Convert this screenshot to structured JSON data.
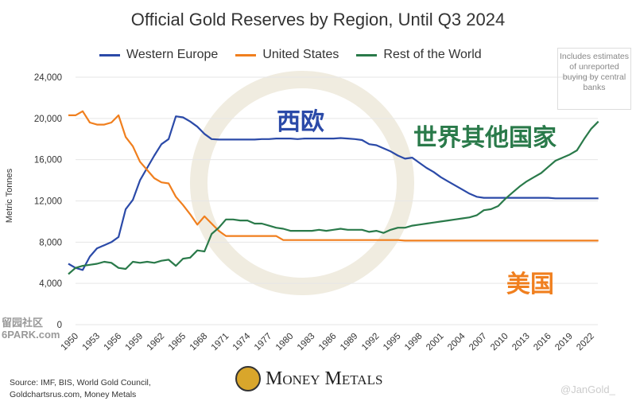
{
  "chart_data": {
    "type": "line",
    "title": "Official Gold Reserves by Region, Until Q3 2024",
    "ylabel": "Metric Tonnes",
    "xlabel": "",
    "ylim": [
      0,
      24000
    ],
    "yticks": [
      0,
      4000,
      8000,
      12000,
      16000,
      20000,
      24000
    ],
    "ytick_labels": [
      "0",
      "4,000",
      "8,000",
      "12,000",
      "16,000",
      "20,000",
      "24,000"
    ],
    "xtick_labels": [
      "1950",
      "1953",
      "1956",
      "1959",
      "1962",
      "1965",
      "1968",
      "1971",
      "1974",
      "1977",
      "1980",
      "1983",
      "1986",
      "1989",
      "1992",
      "1995",
      "1998",
      "2001",
      "2004",
      "2007",
      "2010",
      "2013",
      "2016",
      "2019",
      "2022"
    ],
    "grid": true,
    "legend_placement": "top",
    "x_start": 1950,
    "x_end": 2024,
    "series": [
      {
        "name": "Western Europe",
        "color": "#2b4aa8",
        "values": [
          5900,
          5500,
          5300,
          6600,
          7400,
          7700,
          8000,
          8500,
          11200,
          12100,
          14000,
          15200,
          16400,
          17500,
          18000,
          20200,
          20100,
          19700,
          19200,
          18500,
          18000,
          17950,
          17950,
          17950,
          17950,
          17950,
          17950,
          18000,
          18000,
          18050,
          18050,
          18050,
          18000,
          18050,
          18050,
          18050,
          18050,
          18050,
          18100,
          18050,
          18000,
          17900,
          17500,
          17400,
          17100,
          16800,
          16400,
          16100,
          16200,
          15700,
          15200,
          14800,
          14300,
          13900,
          13500,
          13100,
          12700,
          12400,
          12300,
          12300,
          12300,
          12300,
          12300,
          12300,
          12300,
          12300,
          12300,
          12300,
          12250,
          12250,
          12250,
          12250,
          12250,
          12250,
          12250
        ]
      },
      {
        "name": "United States",
        "color": "#f07f1e",
        "values": [
          20300,
          20300,
          20700,
          19600,
          19400,
          19400,
          19600,
          20300,
          18200,
          17300,
          15800,
          15000,
          14200,
          13800,
          13700,
          12400,
          11600,
          10700,
          9700,
          10500,
          9800,
          9100,
          8600,
          8600,
          8600,
          8600,
          8600,
          8600,
          8600,
          8600,
          8200,
          8200,
          8200,
          8200,
          8200,
          8200,
          8200,
          8200,
          8200,
          8200,
          8200,
          8200,
          8200,
          8200,
          8200,
          8200,
          8200,
          8150,
          8150,
          8150,
          8150,
          8150,
          8150,
          8150,
          8150,
          8150,
          8150,
          8150,
          8150,
          8150,
          8150,
          8150,
          8150,
          8150,
          8150,
          8150,
          8150,
          8150,
          8150,
          8150,
          8150,
          8150,
          8150,
          8150,
          8150
        ]
      },
      {
        "name": "Rest of the World",
        "color": "#2a7a4a",
        "values": [
          4900,
          5500,
          5700,
          5800,
          5900,
          6100,
          6000,
          5500,
          5400,
          6100,
          6000,
          6100,
          6000,
          6200,
          6300,
          5700,
          6400,
          6500,
          7200,
          7100,
          8800,
          9400,
          10200,
          10200,
          10100,
          10100,
          9800,
          9800,
          9600,
          9400,
          9300,
          9100,
          9100,
          9100,
          9100,
          9200,
          9100,
          9200,
          9300,
          9200,
          9200,
          9200,
          9000,
          9100,
          8900,
          9200,
          9400,
          9400,
          9600,
          9700,
          9800,
          9900,
          10000,
          10100,
          10200,
          10300,
          10400,
          10600,
          11100,
          11200,
          11500,
          12200,
          12800,
          13400,
          13900,
          14300,
          14700,
          15300,
          15900,
          16200,
          16500,
          16900,
          18000,
          19000,
          19700
        ]
      }
    ],
    "annotations": {
      "note": "Includes estimates of unreported buying by central banks",
      "western_europe_cn": "西欧",
      "rest_cn": "世界其他国家",
      "us_cn": "美国"
    }
  },
  "footer": {
    "source_line1": "Source: IMF, BIS, World Gold Council,",
    "source_line2": "Goldchartsrus.com, Money Metals",
    "logo_text": "Money Metals",
    "credit": "@JanGold_",
    "watermark_line1": "留园社区",
    "watermark_line2": "6PARK.com"
  }
}
